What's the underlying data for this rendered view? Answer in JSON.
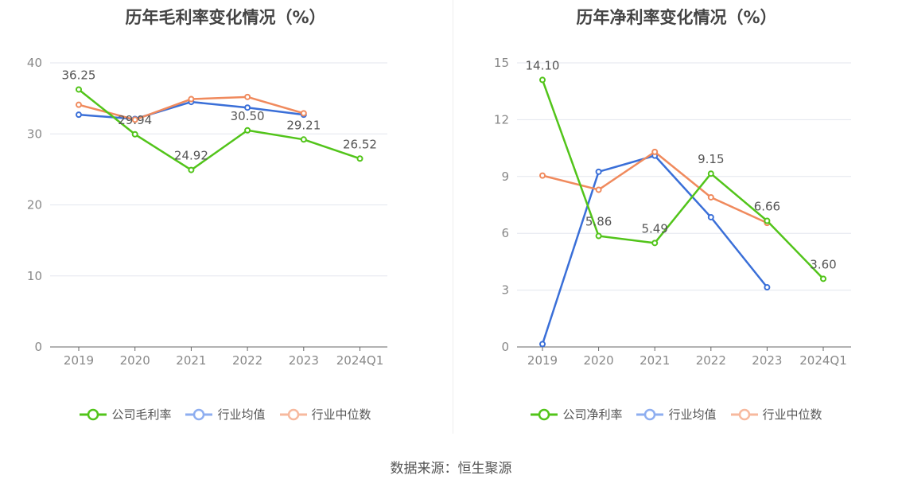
{
  "source": "数据来源：恒生聚源",
  "chart_data": [
    {
      "type": "line",
      "title": "历年毛利率变化情况（%）",
      "categories": [
        "2019",
        "2020",
        "2021",
        "2022",
        "2023",
        "2024Q1"
      ],
      "ylim": [
        0,
        40
      ],
      "yticks": [
        0,
        10,
        20,
        30,
        40
      ],
      "grid": true,
      "legend_position": "bottom",
      "series": [
        {
          "name": "公司毛利率",
          "color": "#52c41a",
          "values": [
            36.25,
            29.94,
            24.92,
            30.5,
            29.21,
            26.52
          ],
          "labels": [
            "36.25",
            "29.94",
            "24.92",
            "30.50",
            "29.21",
            "26.52"
          ]
        },
        {
          "name": "行业均值",
          "color": "#3a6fd8",
          "legend_color": "#8eaef0",
          "values": [
            32.7,
            32.1,
            34.5,
            33.7,
            32.7,
            null
          ],
          "labels": null
        },
        {
          "name": "行业中位数",
          "color": "#f08a5d",
          "legend_color": "#f7b99e",
          "values": [
            34.1,
            32.0,
            34.9,
            35.2,
            32.9,
            null
          ],
          "labels": null
        }
      ]
    },
    {
      "type": "line",
      "title": "历年净利率变化情况（%）",
      "categories": [
        "2019",
        "2020",
        "2021",
        "2022",
        "2023",
        "2024Q1"
      ],
      "ylim": [
        0,
        15
      ],
      "yticks": [
        0,
        3,
        6,
        9,
        12,
        15
      ],
      "grid": true,
      "legend_position": "bottom",
      "series": [
        {
          "name": "公司净利率",
          "color": "#52c41a",
          "values": [
            14.1,
            5.86,
            5.49,
            9.15,
            6.66,
            3.6
          ],
          "labels": [
            "14.10",
            "5.86",
            "5.49",
            "9.15",
            "6.66",
            "3.60"
          ]
        },
        {
          "name": "行业均值",
          "color": "#3a6fd8",
          "legend_color": "#8eaef0",
          "values": [
            0.15,
            9.25,
            10.1,
            6.85,
            3.15,
            null
          ],
          "labels": null
        },
        {
          "name": "行业中位数",
          "color": "#f08a5d",
          "legend_color": "#f7b99e",
          "values": [
            9.05,
            8.3,
            10.3,
            7.9,
            6.55,
            null
          ],
          "labels": null
        }
      ]
    }
  ]
}
